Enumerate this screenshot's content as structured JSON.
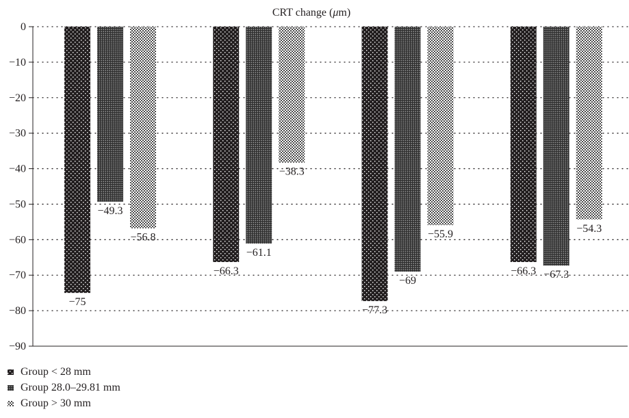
{
  "chart_data": {
    "type": "bar",
    "title": "CRT change (μm)",
    "title_parts": {
      "before": "CRT change (",
      "unit": "μ",
      "after": "m)"
    },
    "xlabel": "",
    "ylabel": "",
    "ylim": [
      -90,
      0
    ],
    "yticks": [
      "0",
      "−10",
      "−20",
      "−30",
      "−40",
      "−50",
      "−60",
      "−70",
      "−80",
      "−90"
    ],
    "ytick_values": [
      0,
      -10,
      -20,
      -30,
      -40,
      -50,
      -60,
      -70,
      -80,
      -90
    ],
    "grid": "dotted horizontal",
    "legend_position": "bottom-left",
    "categories": [
      "",
      "",
      "",
      ""
    ],
    "series": [
      {
        "name": "Group < 28 mm",
        "values": [
          -75,
          -66.3,
          -77.3,
          -66.3
        ],
        "labels": [
          "−75",
          "−66.3",
          "−77.3",
          "−66.3"
        ],
        "pattern": "dots-dark",
        "color": "#231f20"
      },
      {
        "name": "Group 28.0–29.81 mm",
        "values": [
          -49.3,
          -61.1,
          -69,
          -67.3
        ],
        "labels": [
          "−49.3",
          "−61.1",
          "−69",
          "−67.3"
        ],
        "pattern": "dots-medium",
        "color": "#3a3a3a"
      },
      {
        "name": "Group > 30 mm",
        "values": [
          -56.8,
          -38.3,
          -55.9,
          -54.3
        ],
        "labels": [
          "−56.8",
          "−38.3",
          "−55.9",
          "−54.3"
        ],
        "pattern": "checker-light",
        "color": "#8a8a8a"
      }
    ]
  }
}
